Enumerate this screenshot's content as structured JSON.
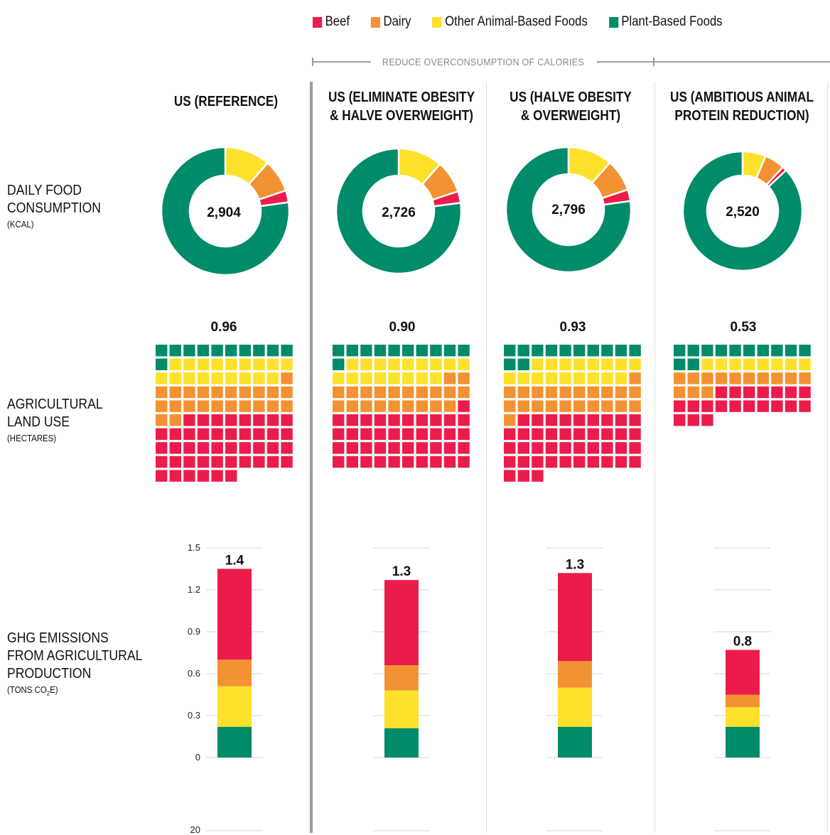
{
  "legend": [
    {
      "label": "Beef",
      "color": "#eb1c4b"
    },
    {
      "label": "Dairy",
      "color": "#f39232"
    },
    {
      "label": "Other Animal-Based Foods",
      "color": "#fde12b"
    },
    {
      "label": "Plant-Based Foods",
      "color": "#008b6a"
    }
  ],
  "bracket_label": "REDUCE OVERCONSUMPTION OF CALORIES",
  "row_labels": {
    "consumption": {
      "lines": [
        "DAILY FOOD",
        "CONSUMPTION"
      ],
      "unit": "(KCAL)"
    },
    "land": {
      "lines": [
        "AGRICULTURAL",
        "LAND USE"
      ],
      "unit": "(HECTARES)"
    },
    "ghg": {
      "lines": [
        "GHG EMISSIONS",
        "FROM AGRICULTURAL",
        "PRODUCTION"
      ],
      "unit_pre": "(TONS CO",
      "unit_sub": "2",
      "unit_post": "E)"
    }
  },
  "colors": {
    "beef": "#eb1c4b",
    "dairy": "#f39232",
    "other": "#fde12b",
    "plant": "#008b6a"
  },
  "chart_data": {
    "type": "multi-panel",
    "scenarios": [
      {
        "title_lines": [
          "US (REFERENCE)"
        ],
        "kcal": {
          "total": "2,904",
          "shares": {
            "beef": 0.03,
            "dairy": 0.083,
            "other": 0.115,
            "plant": 0.772
          }
        },
        "land": {
          "total": "0.96",
          "cells": {
            "plant": 11,
            "other": 18,
            "dairy": 23,
            "beef": 44
          }
        },
        "ghg": {
          "total": "1.4",
          "segments": {
            "plant": 0.22,
            "other": 0.29,
            "dairy": 0.19,
            "beef": 0.65
          }
        }
      },
      {
        "title_lines": [
          "US (ELIMINATE OBESITY",
          "& HALVE OVERWEIGHT)"
        ],
        "kcal": {
          "total": "2,726",
          "shares": {
            "beef": 0.03,
            "dairy": 0.084,
            "other": 0.115,
            "plant": 0.771
          }
        },
        "land": {
          "total": "0.90",
          "cells": {
            "plant": 11,
            "other": 17,
            "dairy": 21,
            "beef": 41
          }
        },
        "ghg": {
          "total": "1.3",
          "segments": {
            "plant": 0.21,
            "other": 0.27,
            "dairy": 0.18,
            "beef": 0.61
          }
        }
      },
      {
        "title_lines": [
          "US (HALVE OBESITY",
          "& OVERWEIGHT)"
        ],
        "kcal": {
          "total": "2,796",
          "shares": {
            "beef": 0.03,
            "dairy": 0.083,
            "other": 0.115,
            "plant": 0.772
          }
        },
        "land": {
          "total": "0.93",
          "cells": {
            "plant": 12,
            "other": 17,
            "dairy": 22,
            "beef": 42
          }
        },
        "ghg": {
          "total": "1.3",
          "segments": {
            "plant": 0.22,
            "other": 0.28,
            "dairy": 0.19,
            "beef": 0.63
          }
        }
      },
      {
        "title_lines": [
          "US (AMBITIOUS ANIMAL",
          "PROTEIN REDUCTION)"
        ],
        "kcal": {
          "total": "2,520",
          "shares": {
            "beef": 0.012,
            "dairy": 0.055,
            "other": 0.063,
            "plant": 0.87
          }
        },
        "land": {
          "total": "0.53",
          "cells": {
            "plant": 12,
            "other": 8,
            "dairy": 13,
            "beef": 20
          }
        },
        "ghg": {
          "total": "0.8",
          "segments": {
            "plant": 0.22,
            "other": 0.14,
            "dairy": 0.09,
            "beef": 0.32
          }
        }
      }
    ],
    "ghg_axis": {
      "ticks": [
        "0",
        "0.3",
        "0.6",
        "0.9",
        "1.2",
        "1.5"
      ],
      "ylim": [
        0,
        1.5
      ]
    },
    "next_axis_tick": "20"
  }
}
